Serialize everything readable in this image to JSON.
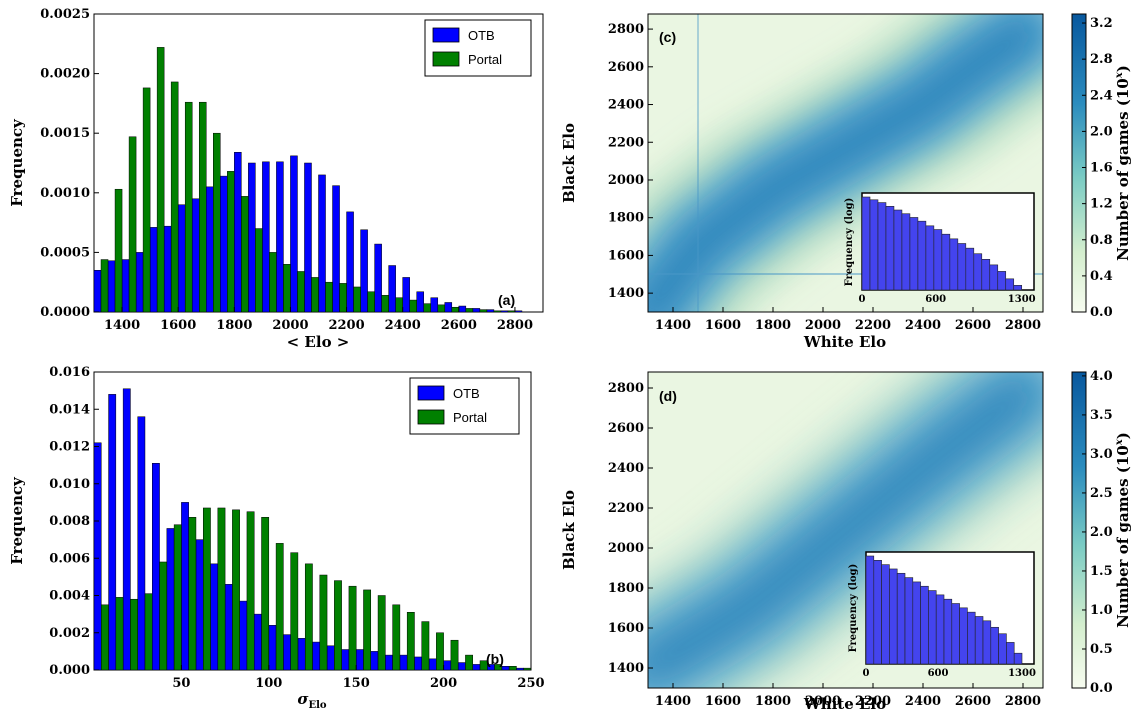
{
  "colors": {
    "otb": "#0000ff",
    "portal": "#008000",
    "heat_low": "#f7fcf0",
    "heat_high": "#08589e",
    "inset_bar": "#4444ee"
  },
  "chart_data": [
    {
      "id": "a",
      "panel_label": "(a)",
      "type": "bar",
      "xlabel": "< Elo >",
      "ylabel": "Frequency",
      "xlim": [
        1300,
        2900
      ],
      "ylim": [
        0,
        0.0025
      ],
      "xticks": [
        "1400",
        "1600",
        "1800",
        "2000",
        "2200",
        "2400",
        "2600",
        "2800"
      ],
      "yticks": [
        "0.0000",
        "0.0005",
        "0.0010",
        "0.0015",
        "0.0020",
        "0.0025"
      ],
      "bin_width": 50,
      "x": [
        1300,
        1350,
        1400,
        1450,
        1500,
        1550,
        1600,
        1650,
        1700,
        1750,
        1800,
        1850,
        1900,
        1950,
        2000,
        2050,
        2100,
        2150,
        2200,
        2250,
        2300,
        2350,
        2400,
        2450,
        2500,
        2550,
        2600,
        2650,
        2700,
        2750,
        2800
      ],
      "series": [
        {
          "name": "OTB",
          "values": [
            0.00035,
            0.00043,
            0.00044,
            0.0005,
            0.00071,
            0.00072,
            0.0009,
            0.00095,
            0.00105,
            0.00114,
            0.00134,
            0.00125,
            0.00126,
            0.00126,
            0.00131,
            0.00125,
            0.00115,
            0.00106,
            0.00084,
            0.00069,
            0.00057,
            0.00039,
            0.00029,
            0.00017,
            0.00012,
            8e-05,
            5e-05,
            3e-05,
            2e-05,
            1e-05,
            1e-05
          ]
        },
        {
          "name": "Portal",
          "values": [
            0.00044,
            0.00103,
            0.00147,
            0.00188,
            0.00222,
            0.00193,
            0.00176,
            0.00176,
            0.0015,
            0.00118,
            0.00097,
            0.0007,
            0.0005,
            0.0004,
            0.00034,
            0.00029,
            0.00025,
            0.00024,
            0.00021,
            0.00017,
            0.00014,
            0.00012,
            0.0001,
            7e-05,
            6e-05,
            4e-05,
            3e-05,
            2e-05,
            1e-05,
            1e-05,
            0.0
          ]
        }
      ],
      "legend_position": "top-right"
    },
    {
      "id": "b",
      "panel_label": "(b)",
      "type": "bar",
      "xlabel": "σElo",
      "ylabel": "Frequency",
      "xlim": [
        0,
        250
      ],
      "ylim": [
        0,
        0.016
      ],
      "xticks": [
        "50",
        "100",
        "150",
        "200",
        "250"
      ],
      "yticks": [
        "0.000",
        "0.002",
        "0.004",
        "0.006",
        "0.008",
        "0.010",
        "0.012",
        "0.014",
        "0.016"
      ],
      "bin_width": 8.33,
      "x": [
        0,
        8.33,
        16.67,
        25,
        33.33,
        41.67,
        50,
        58.33,
        66.67,
        75,
        83.33,
        91.67,
        100,
        108.33,
        116.67,
        125,
        133.33,
        141.67,
        150,
        158.33,
        166.67,
        175,
        183.33,
        191.67,
        200,
        208.33,
        216.67,
        225,
        233.33,
        241.67
      ],
      "series": [
        {
          "name": "OTB",
          "values": [
            0.0122,
            0.0148,
            0.0151,
            0.0136,
            0.0111,
            0.0076,
            0.009,
            0.007,
            0.0057,
            0.0046,
            0.0037,
            0.003,
            0.0024,
            0.0019,
            0.0017,
            0.0015,
            0.0013,
            0.0011,
            0.0011,
            0.001,
            0.0008,
            0.0008,
            0.0007,
            0.0006,
            0.0005,
            0.0004,
            0.0003,
            0.0003,
            0.0002,
            0.0001
          ]
        },
        {
          "name": "Portal",
          "values": [
            0.0035,
            0.0039,
            0.0038,
            0.0041,
            0.0058,
            0.0078,
            0.0082,
            0.0087,
            0.0087,
            0.0086,
            0.0085,
            0.0082,
            0.0068,
            0.0063,
            0.0057,
            0.0051,
            0.0048,
            0.0045,
            0.0043,
            0.004,
            0.0035,
            0.0031,
            0.0026,
            0.002,
            0.0016,
            0.0008,
            0.0005,
            0.0003,
            0.0002,
            0.0001
          ]
        }
      ],
      "legend_position": "top-right"
    },
    {
      "id": "c",
      "panel_label": "(c)",
      "type": "heatmap",
      "xlabel": "White Elo",
      "ylabel": "Black Elo",
      "xlim": [
        1300,
        2880
      ],
      "ylim": [
        1300,
        2880
      ],
      "xticks": [
        "1400",
        "1600",
        "1800",
        "2000",
        "2200",
        "2400",
        "2600",
        "2800"
      ],
      "yticks": [
        "1400",
        "1600",
        "1800",
        "2000",
        "2200",
        "2400",
        "2600",
        "2800"
      ],
      "colorbar": {
        "label": "Number of games (10^x)",
        "range": [
          0,
          3.3
        ],
        "ticks": [
          "0.0",
          "0.4",
          "0.8",
          "1.2",
          "1.6",
          "2.0",
          "2.4",
          "2.8",
          "3.2"
        ]
      },
      "ridge": [
        [
          1300,
          1300
        ],
        [
          1500,
          1650
        ],
        [
          1800,
          1950
        ],
        [
          2000,
          2100
        ],
        [
          2200,
          2250
        ],
        [
          2400,
          2400
        ],
        [
          2600,
          2600
        ],
        [
          2800,
          2780
        ]
      ],
      "inset": {
        "type": "bar",
        "ylabel": "Frequency (log)",
        "xticks": [
          "0",
          "600",
          "1300"
        ],
        "xlim": [
          0,
          1400
        ],
        "values": [
          1.0,
          0.97,
          0.94,
          0.9,
          0.86,
          0.82,
          0.78,
          0.74,
          0.69,
          0.65,
          0.6,
          0.55,
          0.5,
          0.45,
          0.39,
          0.33,
          0.27,
          0.2,
          0.12,
          0.05
        ]
      }
    },
    {
      "id": "d",
      "panel_label": "(d)",
      "type": "heatmap",
      "xlabel": "White Elo",
      "ylabel": "Black Elo",
      "xlim": [
        1300,
        2880
      ],
      "ylim": [
        1300,
        2880
      ],
      "xticks": [
        "1400",
        "1600",
        "1800",
        "2000",
        "2200",
        "2400",
        "2600",
        "2800"
      ],
      "yticks": [
        "1400",
        "1600",
        "1800",
        "2000",
        "2200",
        "2400",
        "2600",
        "2800"
      ],
      "colorbar": {
        "label": "Number of games (10^x)",
        "range": [
          0,
          4.05
        ],
        "ticks": [
          "0.0",
          "0.5",
          "1.0",
          "1.5",
          "2.0",
          "2.5",
          "3.0",
          "3.5",
          "4.0"
        ]
      },
      "ridge": [
        [
          1300,
          1400
        ],
        [
          1500,
          1550
        ],
        [
          1700,
          1700
        ],
        [
          1900,
          1900
        ],
        [
          2100,
          2100
        ],
        [
          2300,
          2300
        ],
        [
          2500,
          2500
        ],
        [
          2800,
          2780
        ]
      ],
      "inset": {
        "type": "bar",
        "ylabel": "Frequency (log)",
        "xticks": [
          "0",
          "600",
          "1300"
        ],
        "xlim": [
          0,
          1400
        ],
        "values": [
          1.0,
          0.96,
          0.92,
          0.88,
          0.84,
          0.8,
          0.76,
          0.72,
          0.68,
          0.64,
          0.6,
          0.56,
          0.52,
          0.48,
          0.44,
          0.4,
          0.34,
          0.28,
          0.2,
          0.1
        ]
      }
    }
  ]
}
